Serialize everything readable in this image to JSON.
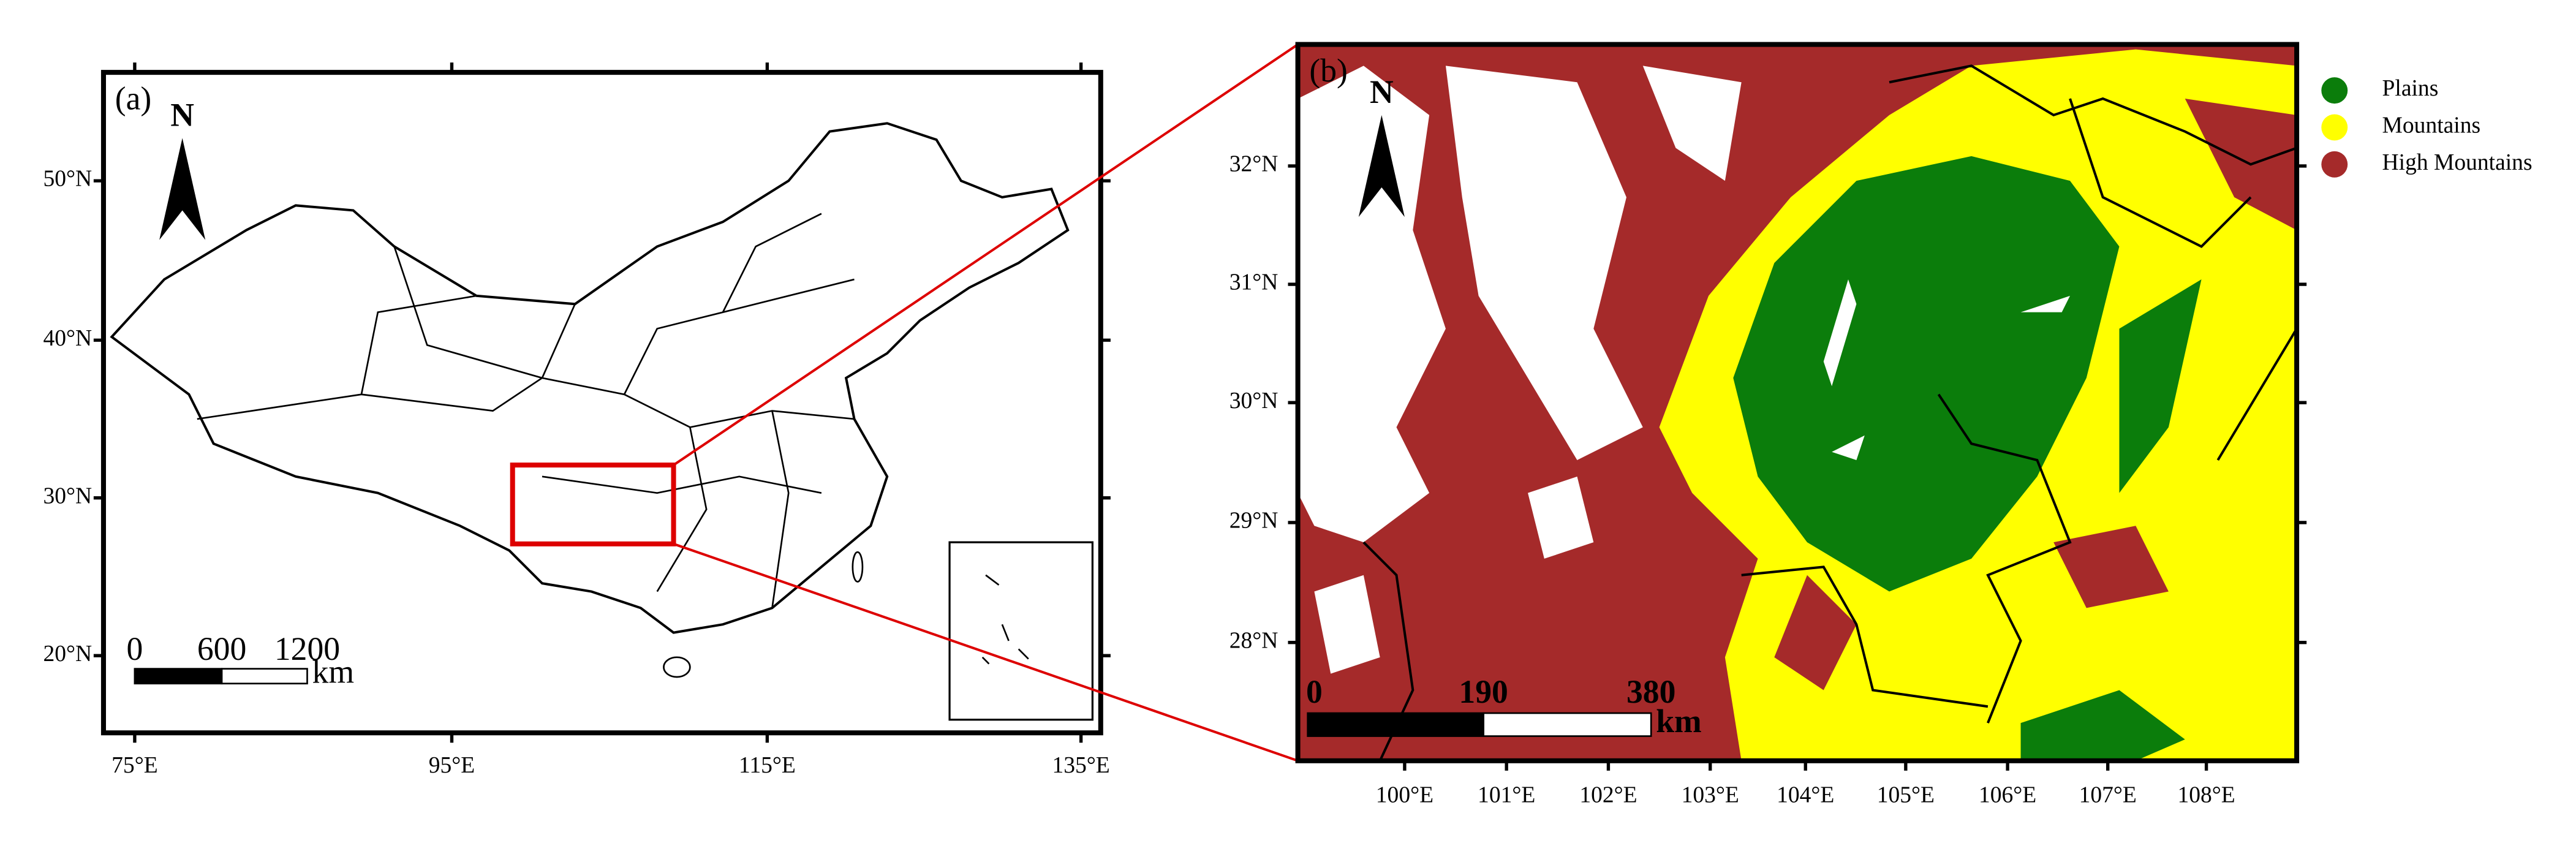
{
  "panel_a": {
    "label": "(a)",
    "north": "N",
    "lon_labels": [
      "75°E",
      "95°E",
      "115°E",
      "135°E"
    ],
    "lat_labels": [
      "50°N",
      "40°N",
      "30°N",
      "20°N"
    ],
    "scale_labels": [
      "0",
      "600",
      "1200"
    ],
    "scale_unit": "km"
  },
  "panel_b": {
    "label": "(b)",
    "north": "N",
    "lon_labels": [
      "100°E",
      "101°E",
      "102°E",
      "103°E",
      "104°E",
      "105°E",
      "106°E",
      "107°E",
      "108°E"
    ],
    "lat_labels": [
      "32°N",
      "31°N",
      "30°N",
      "29°N",
      "28°N"
    ],
    "scale_labels": [
      "0",
      "190",
      "380"
    ],
    "scale_unit": "km",
    "legend": [
      {
        "name": "Plains",
        "color": "#0b7d0b"
      },
      {
        "name": "Mountains",
        "color": "#ffff00"
      },
      {
        "name": "High Mountains",
        "color": "#a52a2a"
      }
    ]
  }
}
